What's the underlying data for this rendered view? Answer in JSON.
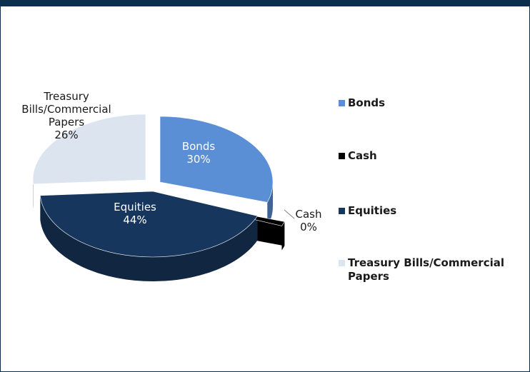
{
  "chart_data": {
    "type": "pie",
    "title": "",
    "slices": [
      {
        "name": "Bonds",
        "value": 30,
        "color": "#5a8fd6"
      },
      {
        "name": "Cash",
        "value": 0,
        "color": "#000000"
      },
      {
        "name": "Equities",
        "value": 44,
        "color": "#17365d"
      },
      {
        "name": "Treasury Bills/Commercial Papers",
        "value": 26,
        "color": "#dce4f0"
      }
    ],
    "data_labels": [
      {
        "lines": [
          "Bonds",
          "30%"
        ]
      },
      {
        "lines": [
          "Cash",
          "0%"
        ]
      },
      {
        "lines": [
          "Equities",
          "44%"
        ]
      },
      {
        "lines": [
          "Treasury",
          "Bills/Commercial",
          "Papers",
          "26%"
        ]
      }
    ],
    "legend": {
      "position": "right",
      "items": [
        {
          "lines": [
            "Bonds"
          ],
          "color": "#5a8fd6"
        },
        {
          "lines": [
            "Cash"
          ],
          "color": "#000000"
        },
        {
          "lines": [
            "Equities"
          ],
          "color": "#17365d"
        },
        {
          "lines": [
            "Treasury Bills/Commercial",
            "Papers"
          ],
          "color": "#dce4f0"
        }
      ]
    }
  }
}
